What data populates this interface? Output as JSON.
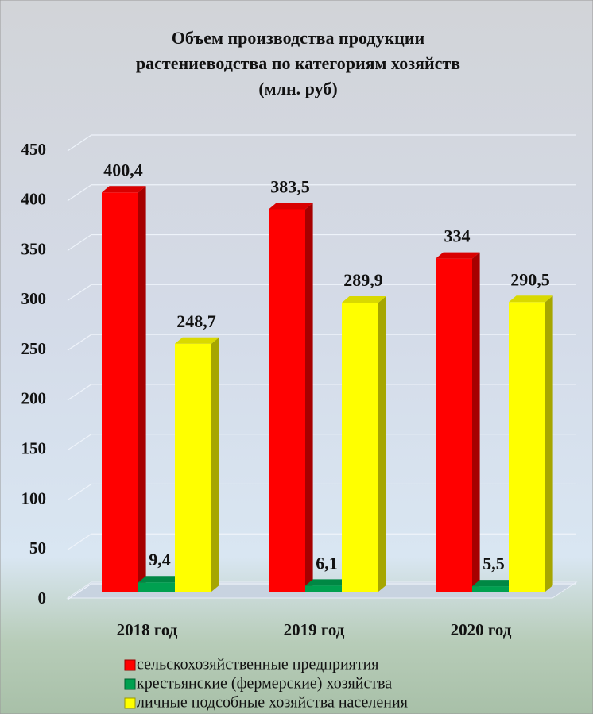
{
  "chart_data": {
    "type": "bar3d",
    "title": "Объем производства продукции растениеводства по категориям хозяйств (млн. руб)",
    "categories": [
      "2018 год",
      "2019 год",
      "2020 год"
    ],
    "series": [
      {
        "name": "сельскохозяйственные предприятия",
        "color": "#ff0000",
        "values": [
          400.4,
          383.5,
          334
        ],
        "value_labels": [
          "400,4",
          "383,5",
          "334"
        ]
      },
      {
        "name": "крестьянские (фермерские) хозяйства",
        "color": "#00a050",
        "values": [
          9.4,
          6.1,
          5.5
        ],
        "value_labels": [
          "9,4",
          "6,1",
          "5,5"
        ]
      },
      {
        "name": "личные подсобные хозяйства населения",
        "color": "#ffff00",
        "values": [
          248.7,
          289.9,
          290.5
        ],
        "value_labels": [
          "248,7",
          "289,9",
          "290,5"
        ]
      }
    ],
    "ylim": [
      0,
      450
    ],
    "yticks": [
      0,
      50,
      100,
      150,
      200,
      250,
      300,
      350,
      400,
      450
    ],
    "grid": true
  }
}
